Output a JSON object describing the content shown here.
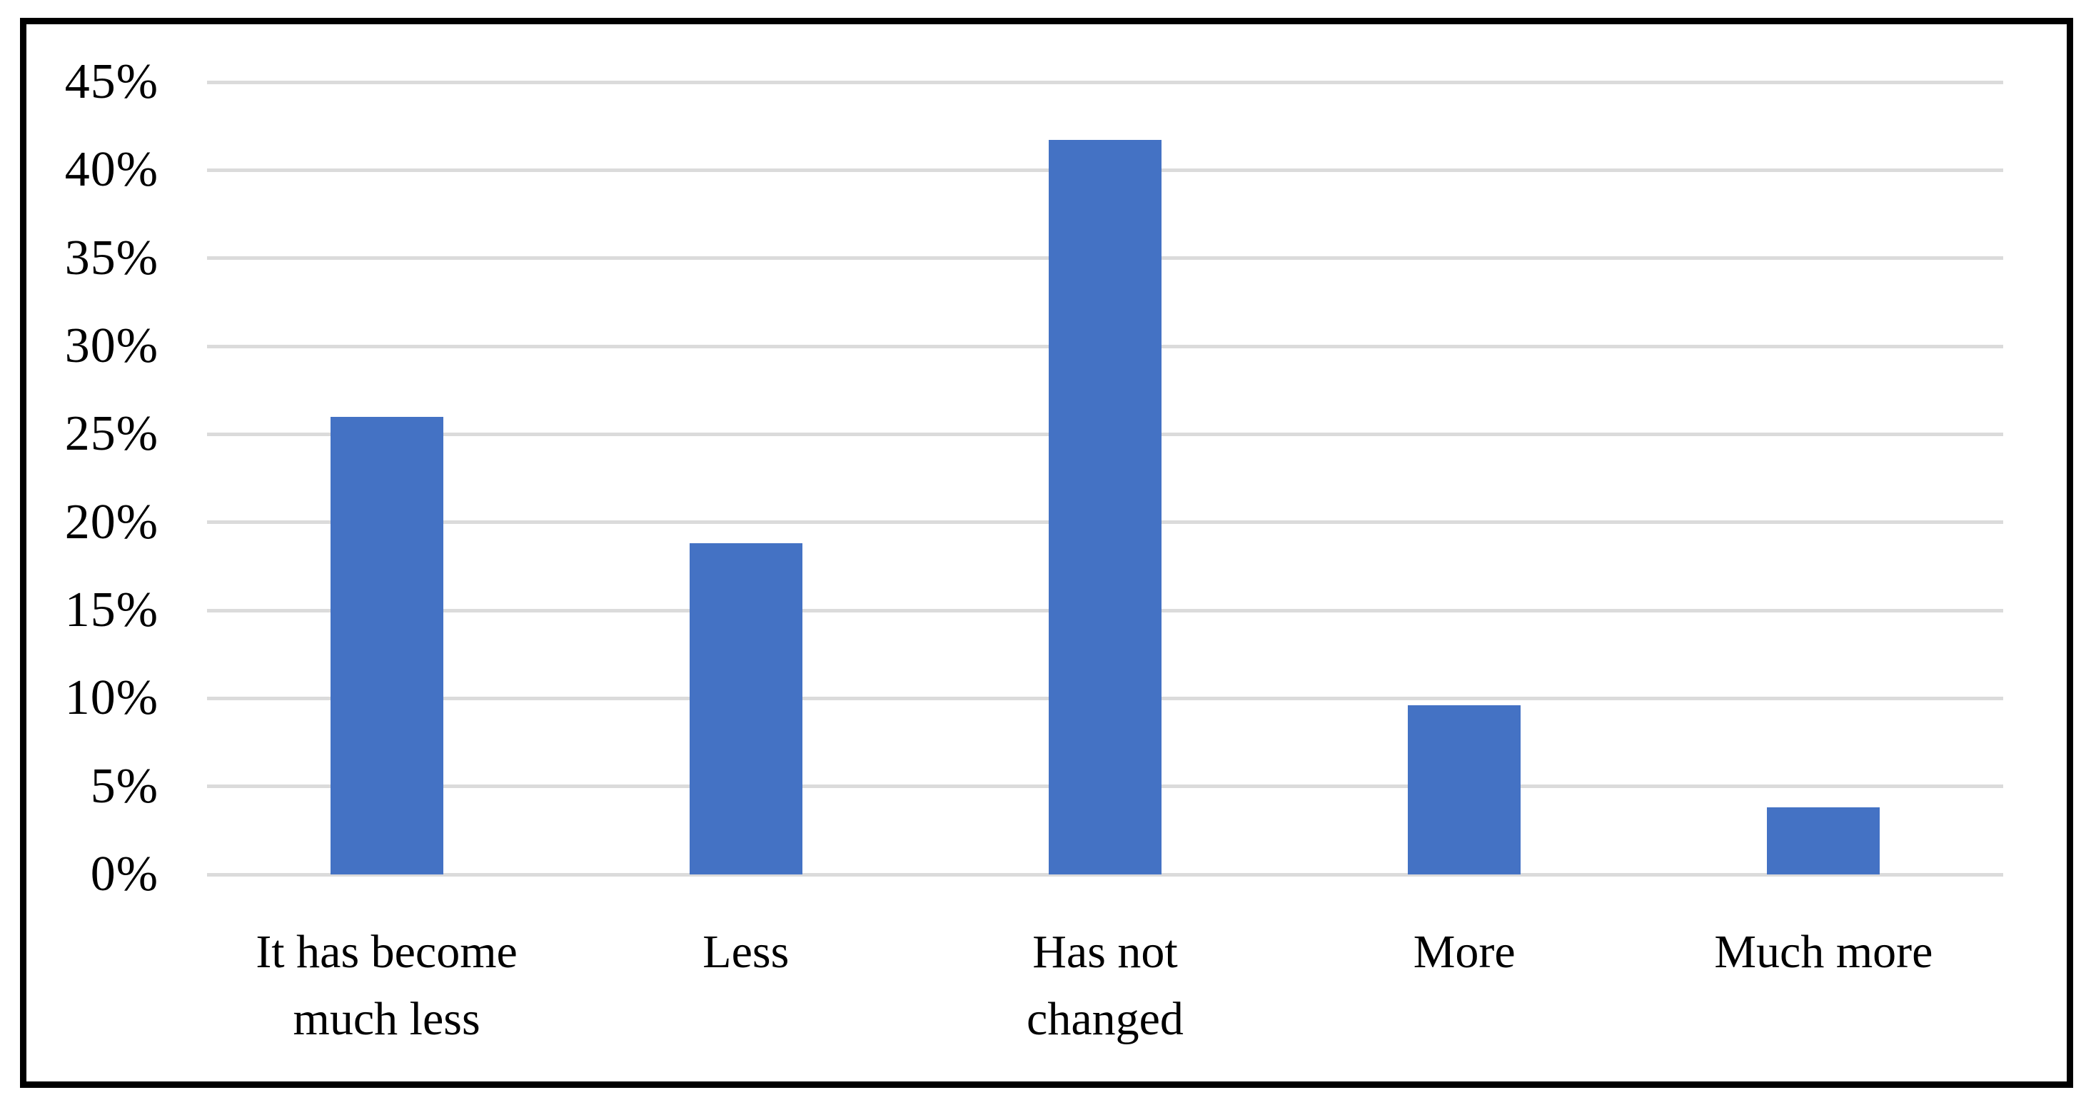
{
  "chart_data": {
    "type": "bar",
    "title": "",
    "xlabel": "",
    "ylabel": "",
    "categories": [
      "It has become\nmuch less",
      "Less",
      "Has not\nchanged",
      "More",
      "Much more"
    ],
    "values": [
      26,
      18.8,
      41.7,
      9.6,
      3.8
    ],
    "value_unit": "%",
    "ylim": [
      0,
      45
    ],
    "ytick_step": 5,
    "ytick_labels": [
      "0%",
      "5%",
      "10%",
      "15%",
      "20%",
      "25%",
      "30%",
      "35%",
      "40%",
      "45%"
    ],
    "grid": "horizontal",
    "legend_position": "none",
    "colors": {
      "bar": "#4472C4",
      "gridline": "#DBDBDB",
      "axis_text": "#000000",
      "chart_border": "#000000",
      "background": "#FFFFFF"
    }
  }
}
